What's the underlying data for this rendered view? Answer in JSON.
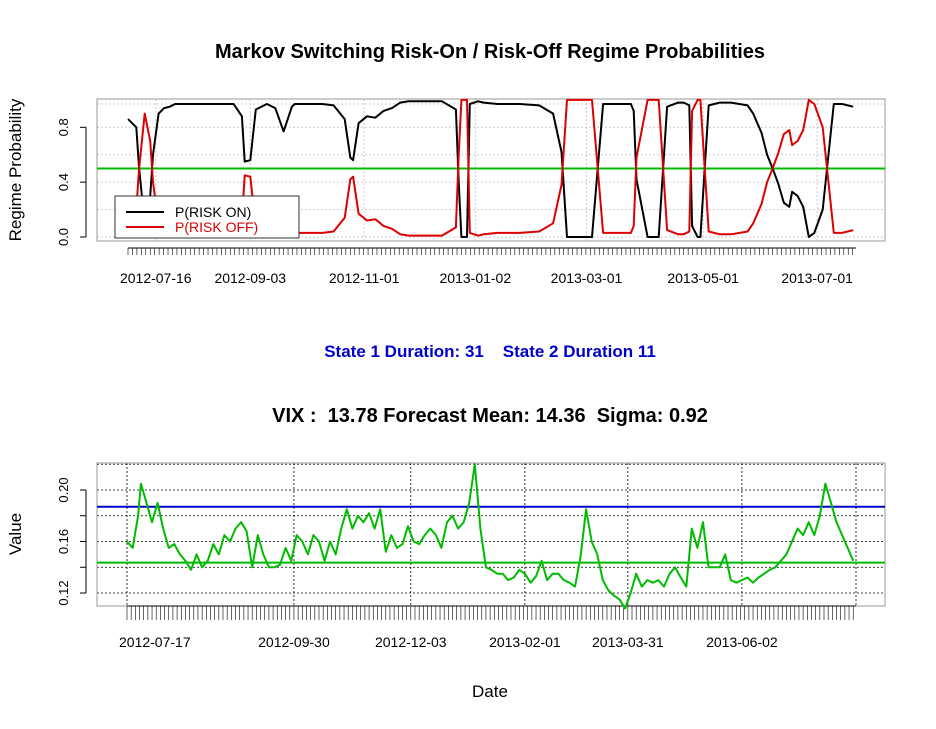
{
  "chart_data": [
    {
      "type": "line",
      "title": "Markov Switching Risk-On / Risk-Off Regime Probabilities",
      "ylabel": "Regime Probability",
      "xlabel": "",
      "ylim": [
        -0.02,
        1.0
      ],
      "yticks": [
        0.0,
        0.4,
        0.8
      ],
      "ytick_labels": [
        "0.0",
        "0.4",
        "0.8"
      ],
      "x_tick_labels": [
        "2012-07-16",
        "2012-09-03",
        "2012-11-01",
        "2013-01-02",
        "2013-03-01",
        "2013-05-01",
        "2013-07-01"
      ],
      "x_tick_positions": [
        10,
        44,
        85,
        125,
        165,
        207,
        248
      ],
      "x_range": [
        0,
        262
      ],
      "threshold": 0.5,
      "threshold_color": "#00bb00",
      "legend": [
        {
          "name": "P(RISK ON)",
          "color": "#000000"
        },
        {
          "name": "P(RISK OFF)",
          "color": "#dd0000"
        }
      ],
      "series": [
        {
          "name": "P(RISK ON)",
          "color": "#000000",
          "x": [
            0,
            3,
            4,
            6,
            8,
            9,
            11,
            13,
            15,
            17,
            20,
            23,
            27,
            33,
            38,
            41,
            42,
            44,
            46,
            50,
            53,
            56,
            59,
            60,
            64,
            70,
            74,
            78,
            80,
            81,
            83,
            86,
            89,
            92,
            95,
            98,
            101,
            104,
            108,
            113,
            118,
            119,
            120,
            122,
            123,
            126,
            128,
            133,
            135,
            141,
            148,
            153,
            156,
            158,
            163,
            167,
            171,
            177,
            181,
            182,
            183,
            187,
            191,
            194,
            198,
            200,
            202,
            203,
            205,
            206,
            209,
            213,
            217,
            223,
            225,
            228,
            230,
            232,
            234,
            236,
            238,
            239,
            241,
            243,
            245,
            247,
            250,
            254,
            257,
            261
          ],
          "values": [
            0.86,
            0.8,
            0.5,
            0.1,
            0.3,
            0.6,
            0.9,
            0.94,
            0.95,
            0.97,
            0.97,
            0.97,
            0.97,
            0.97,
            0.97,
            0.88,
            0.55,
            0.56,
            0.93,
            0.97,
            0.94,
            0.77,
            0.95,
            0.97,
            0.97,
            0.97,
            0.96,
            0.86,
            0.58,
            0.56,
            0.83,
            0.88,
            0.87,
            0.92,
            0.94,
            0.98,
            0.99,
            0.99,
            0.99,
            0.99,
            0.93,
            0.4,
            0.0,
            0.0,
            0.97,
            0.99,
            0.98,
            0.97,
            0.97,
            0.97,
            0.96,
            0.9,
            0.62,
            0.0,
            0.0,
            0.0,
            0.97,
            0.97,
            0.97,
            0.92,
            0.42,
            0.0,
            0.0,
            0.95,
            0.98,
            0.98,
            0.96,
            0.08,
            0.0,
            0.0,
            0.96,
            0.98,
            0.98,
            0.96,
            0.9,
            0.76,
            0.6,
            0.5,
            0.39,
            0.25,
            0.22,
            0.33,
            0.3,
            0.22,
            0.0,
            0.03,
            0.2,
            0.97,
            0.97,
            0.95
          ]
        },
        {
          "name": "P(RISK OFF)",
          "color": "#dd0000",
          "x": [
            0,
            3,
            4,
            6,
            8,
            9,
            11,
            13,
            15,
            17,
            20,
            23,
            27,
            33,
            38,
            41,
            42,
            44,
            46,
            50,
            53,
            56,
            59,
            60,
            64,
            70,
            74,
            78,
            80,
            81,
            83,
            86,
            89,
            92,
            95,
            98,
            101,
            104,
            108,
            113,
            118,
            119,
            120,
            122,
            123,
            126,
            128,
            133,
            135,
            141,
            148,
            153,
            156,
            158,
            163,
            167,
            171,
            177,
            181,
            182,
            183,
            187,
            191,
            194,
            198,
            200,
            202,
            203,
            205,
            206,
            209,
            213,
            217,
            223,
            225,
            228,
            230,
            232,
            234,
            236,
            238,
            239,
            241,
            243,
            245,
            247,
            250,
            254,
            257,
            261
          ],
          "values": [
            0.14,
            0.2,
            0.5,
            0.9,
            0.7,
            0.4,
            0.1,
            0.06,
            0.05,
            0.03,
            0.03,
            0.03,
            0.03,
            0.03,
            0.03,
            0.12,
            0.45,
            0.44,
            0.07,
            0.03,
            0.06,
            0.23,
            0.05,
            0.03,
            0.03,
            0.03,
            0.04,
            0.14,
            0.42,
            0.44,
            0.17,
            0.12,
            0.13,
            0.08,
            0.06,
            0.02,
            0.01,
            0.01,
            0.01,
            0.01,
            0.07,
            0.6,
            1.0,
            1.0,
            0.03,
            0.01,
            0.02,
            0.03,
            0.03,
            0.03,
            0.04,
            0.1,
            0.38,
            1.0,
            1.0,
            1.0,
            0.03,
            0.03,
            0.03,
            0.08,
            0.58,
            1.0,
            1.0,
            0.05,
            0.02,
            0.02,
            0.04,
            0.92,
            1.0,
            1.0,
            0.04,
            0.02,
            0.02,
            0.04,
            0.1,
            0.24,
            0.4,
            0.5,
            0.61,
            0.75,
            0.78,
            0.67,
            0.7,
            0.78,
            1.0,
            0.97,
            0.8,
            0.03,
            0.03,
            0.05
          ]
        }
      ]
    },
    {
      "type": "line",
      "title": "VIX :  13.78 Forecast Mean: 14.36  Sigma: 0.92",
      "ylabel": "Value",
      "xlabel": "Date",
      "ylim": [
        0.105,
        0.226
      ],
      "yticks": [
        0.12,
        0.16,
        0.2
      ],
      "ytick_labels": [
        "0.12",
        "0.16",
        "0.20"
      ],
      "minor_grid_y": [
        0.12,
        0.14,
        0.16,
        0.18,
        0.2,
        0.22
      ],
      "x_tick_labels": [
        "2012-07-17",
        "2012-09-30",
        "2012-12-03",
        "2013-02-01",
        "2013-03-31",
        "2013-06-02"
      ],
      "x_tick_positions": [
        10,
        60,
        102,
        143,
        180,
        221
      ],
      "grid_x": [
        0,
        60,
        102,
        143,
        180,
        221,
        262
      ],
      "x_range": [
        -8,
        267
      ],
      "hlines": [
        {
          "name": "upper-band",
          "value": 0.187,
          "color": "#0000cc"
        },
        {
          "name": "forecast-mean",
          "value": 0.1436,
          "color": "#00bb00"
        }
      ],
      "series": [
        {
          "name": "VIX",
          "color": "#00bb00",
          "x": [
            0,
            2,
            4,
            5,
            7,
            9,
            11,
            13,
            15,
            17,
            19,
            21,
            23,
            25,
            27,
            29,
            31,
            33,
            35,
            37,
            39,
            41,
            43,
            45,
            47,
            49,
            51,
            53,
            55,
            57,
            59,
            61,
            63,
            65,
            67,
            69,
            71,
            73,
            75,
            77,
            79,
            81,
            83,
            85,
            87,
            89,
            91,
            93,
            95,
            97,
            99,
            101,
            103,
            105,
            107,
            109,
            111,
            113,
            115,
            117,
            119,
            121,
            123,
            125,
            127,
            129,
            131,
            133,
            135,
            137,
            139,
            141,
            143,
            145,
            147,
            149,
            151,
            153,
            155,
            157,
            159,
            161,
            163,
            165,
            167,
            169,
            171,
            173,
            175,
            177,
            179,
            181,
            183,
            185,
            187,
            189,
            191,
            193,
            195,
            197,
            199,
            201,
            203,
            205,
            207,
            209,
            211,
            213,
            215,
            217,
            219,
            221,
            223,
            225,
            227,
            229,
            231,
            233,
            235,
            237,
            239,
            241,
            243,
            245,
            247,
            249,
            251,
            253,
            255,
            257,
            259,
            261
          ],
          "values": [
            0.16,
            0.155,
            0.18,
            0.205,
            0.19,
            0.175,
            0.19,
            0.17,
            0.155,
            0.158,
            0.15,
            0.145,
            0.138,
            0.15,
            0.14,
            0.145,
            0.158,
            0.15,
            0.165,
            0.16,
            0.17,
            0.175,
            0.168,
            0.14,
            0.165,
            0.15,
            0.14,
            0.14,
            0.142,
            0.155,
            0.145,
            0.165,
            0.16,
            0.15,
            0.165,
            0.16,
            0.145,
            0.16,
            0.15,
            0.17,
            0.185,
            0.17,
            0.18,
            0.175,
            0.182,
            0.17,
            0.185,
            0.152,
            0.165,
            0.155,
            0.158,
            0.172,
            0.16,
            0.158,
            0.165,
            0.17,
            0.165,
            0.155,
            0.175,
            0.18,
            0.17,
            0.175,
            0.19,
            0.22,
            0.17,
            0.14,
            0.138,
            0.135,
            0.135,
            0.13,
            0.132,
            0.138,
            0.135,
            0.128,
            0.133,
            0.145,
            0.13,
            0.135,
            0.135,
            0.13,
            0.128,
            0.125,
            0.148,
            0.185,
            0.16,
            0.15,
            0.13,
            0.122,
            0.118,
            0.115,
            0.108,
            0.12,
            0.135,
            0.125,
            0.13,
            0.128,
            0.13,
            0.125,
            0.135,
            0.14,
            0.132,
            0.125,
            0.17,
            0.155,
            0.175,
            0.14,
            0.14,
            0.14,
            0.15,
            0.13,
            0.128,
            0.13,
            0.132,
            0.128,
            0.132,
            0.135,
            0.138,
            0.14,
            0.145,
            0.15,
            0.16,
            0.17,
            0.165,
            0.175,
            0.165,
            0.18,
            0.205,
            0.19,
            0.175,
            0.165,
            0.155,
            0.145
          ]
        }
      ]
    }
  ],
  "state_info": "State 1 Duration: 31    State 2 Duration 11"
}
